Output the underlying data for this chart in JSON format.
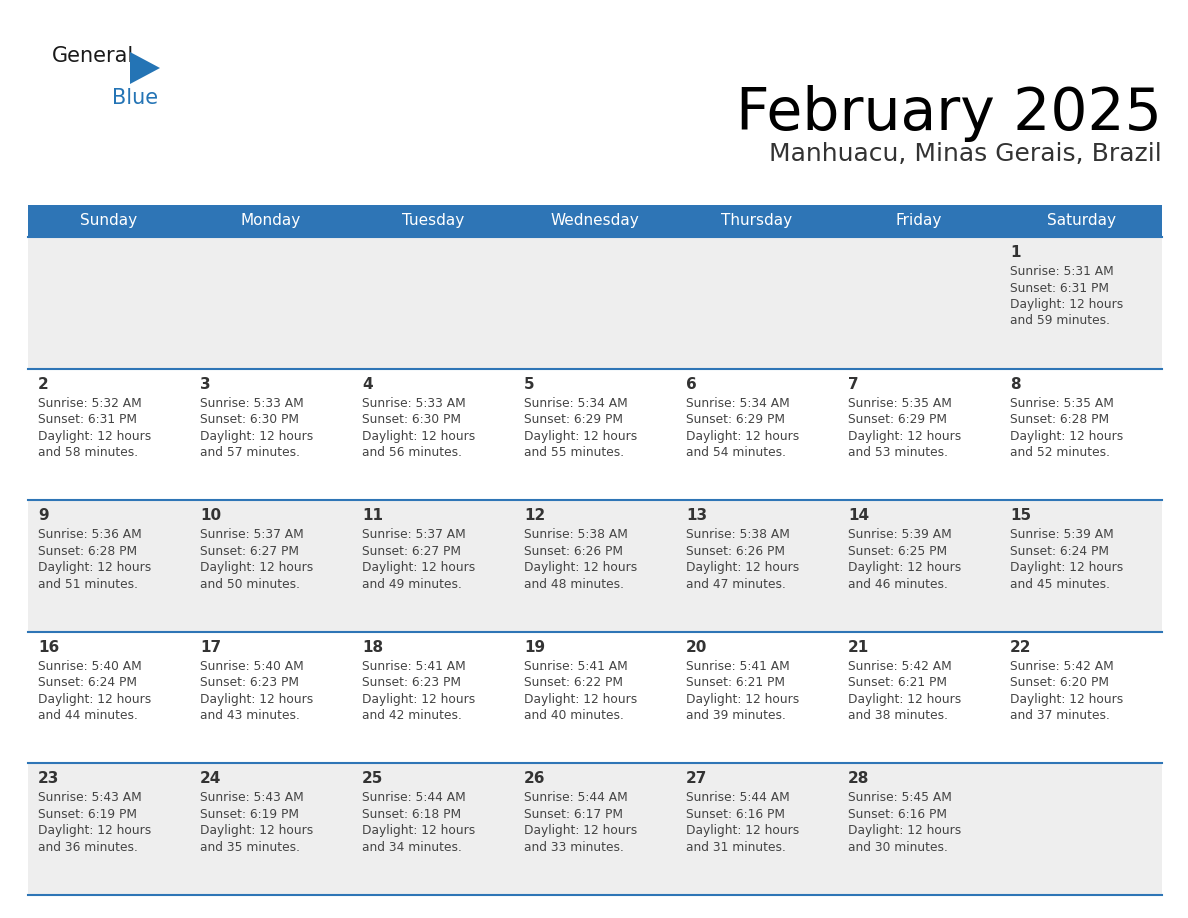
{
  "title": "February 2025",
  "subtitle": "Manhuacu, Minas Gerais, Brazil",
  "days_of_week": [
    "Sunday",
    "Monday",
    "Tuesday",
    "Wednesday",
    "Thursday",
    "Friday",
    "Saturday"
  ],
  "header_bg": "#2E75B6",
  "header_text": "#FFFFFF",
  "cell_bg_even": "#EEEEEE",
  "cell_bg_odd": "#FFFFFF",
  "row_line_color": "#2E75B6",
  "text_color": "#444444",
  "day_num_color": "#333333",
  "logo_general_color": "#1a1a1a",
  "logo_blue_color": "#2474B5",
  "calendar_data": [
    {
      "day": 1,
      "row": 0,
      "col": 6,
      "sunrise": "5:31 AM",
      "sunset": "6:31 PM",
      "dl1": "Daylight: 12 hours",
      "dl2": "and 59 minutes."
    },
    {
      "day": 2,
      "row": 1,
      "col": 0,
      "sunrise": "5:32 AM",
      "sunset": "6:31 PM",
      "dl1": "Daylight: 12 hours",
      "dl2": "and 58 minutes."
    },
    {
      "day": 3,
      "row": 1,
      "col": 1,
      "sunrise": "5:33 AM",
      "sunset": "6:30 PM",
      "dl1": "Daylight: 12 hours",
      "dl2": "and 57 minutes."
    },
    {
      "day": 4,
      "row": 1,
      "col": 2,
      "sunrise": "5:33 AM",
      "sunset": "6:30 PM",
      "dl1": "Daylight: 12 hours",
      "dl2": "and 56 minutes."
    },
    {
      "day": 5,
      "row": 1,
      "col": 3,
      "sunrise": "5:34 AM",
      "sunset": "6:29 PM",
      "dl1": "Daylight: 12 hours",
      "dl2": "and 55 minutes."
    },
    {
      "day": 6,
      "row": 1,
      "col": 4,
      "sunrise": "5:34 AM",
      "sunset": "6:29 PM",
      "dl1": "Daylight: 12 hours",
      "dl2": "and 54 minutes."
    },
    {
      "day": 7,
      "row": 1,
      "col": 5,
      "sunrise": "5:35 AM",
      "sunset": "6:29 PM",
      "dl1": "Daylight: 12 hours",
      "dl2": "and 53 minutes."
    },
    {
      "day": 8,
      "row": 1,
      "col": 6,
      "sunrise": "5:35 AM",
      "sunset": "6:28 PM",
      "dl1": "Daylight: 12 hours",
      "dl2": "and 52 minutes."
    },
    {
      "day": 9,
      "row": 2,
      "col": 0,
      "sunrise": "5:36 AM",
      "sunset": "6:28 PM",
      "dl1": "Daylight: 12 hours",
      "dl2": "and 51 minutes."
    },
    {
      "day": 10,
      "row": 2,
      "col": 1,
      "sunrise": "5:37 AM",
      "sunset": "6:27 PM",
      "dl1": "Daylight: 12 hours",
      "dl2": "and 50 minutes."
    },
    {
      "day": 11,
      "row": 2,
      "col": 2,
      "sunrise": "5:37 AM",
      "sunset": "6:27 PM",
      "dl1": "Daylight: 12 hours",
      "dl2": "and 49 minutes."
    },
    {
      "day": 12,
      "row": 2,
      "col": 3,
      "sunrise": "5:38 AM",
      "sunset": "6:26 PM",
      "dl1": "Daylight: 12 hours",
      "dl2": "and 48 minutes."
    },
    {
      "day": 13,
      "row": 2,
      "col": 4,
      "sunrise": "5:38 AM",
      "sunset": "6:26 PM",
      "dl1": "Daylight: 12 hours",
      "dl2": "and 47 minutes."
    },
    {
      "day": 14,
      "row": 2,
      "col": 5,
      "sunrise": "5:39 AM",
      "sunset": "6:25 PM",
      "dl1": "Daylight: 12 hours",
      "dl2": "and 46 minutes."
    },
    {
      "day": 15,
      "row": 2,
      "col": 6,
      "sunrise": "5:39 AM",
      "sunset": "6:24 PM",
      "dl1": "Daylight: 12 hours",
      "dl2": "and 45 minutes."
    },
    {
      "day": 16,
      "row": 3,
      "col": 0,
      "sunrise": "5:40 AM",
      "sunset": "6:24 PM",
      "dl1": "Daylight: 12 hours",
      "dl2": "and 44 minutes."
    },
    {
      "day": 17,
      "row": 3,
      "col": 1,
      "sunrise": "5:40 AM",
      "sunset": "6:23 PM",
      "dl1": "Daylight: 12 hours",
      "dl2": "and 43 minutes."
    },
    {
      "day": 18,
      "row": 3,
      "col": 2,
      "sunrise": "5:41 AM",
      "sunset": "6:23 PM",
      "dl1": "Daylight: 12 hours",
      "dl2": "and 42 minutes."
    },
    {
      "day": 19,
      "row": 3,
      "col": 3,
      "sunrise": "5:41 AM",
      "sunset": "6:22 PM",
      "dl1": "Daylight: 12 hours",
      "dl2": "and 40 minutes."
    },
    {
      "day": 20,
      "row": 3,
      "col": 4,
      "sunrise": "5:41 AM",
      "sunset": "6:21 PM",
      "dl1": "Daylight: 12 hours",
      "dl2": "and 39 minutes."
    },
    {
      "day": 21,
      "row": 3,
      "col": 5,
      "sunrise": "5:42 AM",
      "sunset": "6:21 PM",
      "dl1": "Daylight: 12 hours",
      "dl2": "and 38 minutes."
    },
    {
      "day": 22,
      "row": 3,
      "col": 6,
      "sunrise": "5:42 AM",
      "sunset": "6:20 PM",
      "dl1": "Daylight: 12 hours",
      "dl2": "and 37 minutes."
    },
    {
      "day": 23,
      "row": 4,
      "col": 0,
      "sunrise": "5:43 AM",
      "sunset": "6:19 PM",
      "dl1": "Daylight: 12 hours",
      "dl2": "and 36 minutes."
    },
    {
      "day": 24,
      "row": 4,
      "col": 1,
      "sunrise": "5:43 AM",
      "sunset": "6:19 PM",
      "dl1": "Daylight: 12 hours",
      "dl2": "and 35 minutes."
    },
    {
      "day": 25,
      "row": 4,
      "col": 2,
      "sunrise": "5:44 AM",
      "sunset": "6:18 PM",
      "dl1": "Daylight: 12 hours",
      "dl2": "and 34 minutes."
    },
    {
      "day": 26,
      "row": 4,
      "col": 3,
      "sunrise": "5:44 AM",
      "sunset": "6:17 PM",
      "dl1": "Daylight: 12 hours",
      "dl2": "and 33 minutes."
    },
    {
      "day": 27,
      "row": 4,
      "col": 4,
      "sunrise": "5:44 AM",
      "sunset": "6:16 PM",
      "dl1": "Daylight: 12 hours",
      "dl2": "and 31 minutes."
    },
    {
      "day": 28,
      "row": 4,
      "col": 5,
      "sunrise": "5:45 AM",
      "sunset": "6:16 PM",
      "dl1": "Daylight: 12 hours",
      "dl2": "and 30 minutes."
    }
  ],
  "fig_width": 11.88,
  "fig_height": 9.18,
  "dpi": 100
}
